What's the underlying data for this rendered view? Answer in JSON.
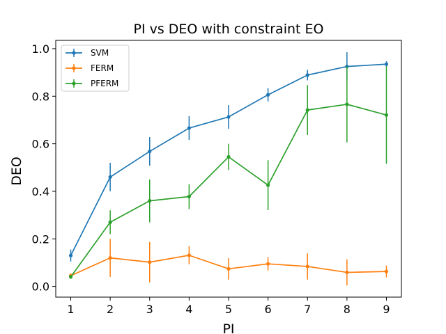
{
  "chart_data": {
    "type": "line",
    "title": "PI vs DEO with constraint EO",
    "xlabel": "PI",
    "ylabel": "DEO",
    "x": [
      1,
      2,
      3,
      4,
      5,
      6,
      7,
      8,
      9
    ],
    "xticks": [
      "1",
      "2",
      "3",
      "4",
      "5",
      "6",
      "7",
      "8",
      "9"
    ],
    "yticks": [
      "0.0",
      "0.2",
      "0.4",
      "0.6",
      "0.8",
      "1.0"
    ],
    "xlim": [
      0.62,
      9.38
    ],
    "ylim": [
      -0.045,
      1.035
    ],
    "grid": false,
    "legend_position": "upper-left",
    "series": [
      {
        "name": "SVM",
        "color": "#1f77b4",
        "values": [
          0.13,
          0.46,
          0.568,
          0.666,
          0.713,
          0.806,
          0.889,
          0.925,
          0.935
        ],
        "errors": [
          0.025,
          0.06,
          0.06,
          0.05,
          0.05,
          0.028,
          0.022,
          0.06,
          0.012
        ]
      },
      {
        "name": "FERM",
        "color": "#ff7f0e",
        "values": [
          0.045,
          0.12,
          0.102,
          0.131,
          0.074,
          0.095,
          0.084,
          0.059,
          0.063
        ],
        "errors": [
          0.01,
          0.08,
          0.085,
          0.038,
          0.045,
          0.028,
          0.055,
          0.055,
          0.025
        ]
      },
      {
        "name": "PFERM",
        "color": "#2ca02c",
        "values": [
          0.04,
          0.27,
          0.36,
          0.378,
          0.545,
          0.426,
          0.742,
          0.766,
          0.721
        ],
        "errors": [
          0.008,
          0.05,
          0.09,
          0.052,
          0.055,
          0.105,
          0.105,
          0.16,
          0.205
        ]
      }
    ]
  }
}
